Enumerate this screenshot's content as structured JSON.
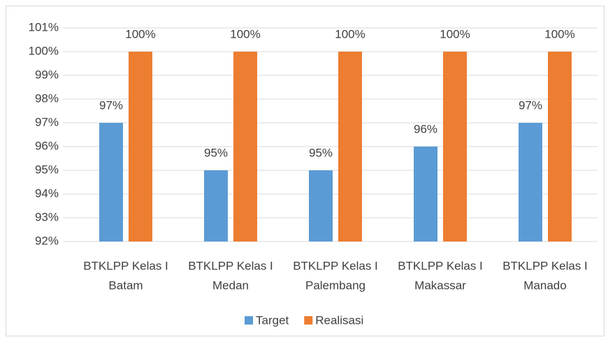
{
  "chart_data": {
    "type": "bar",
    "categories": [
      [
        "BTKLPP Kelas I",
        "Batam"
      ],
      [
        "BTKLPP Kelas I",
        "Medan"
      ],
      [
        "BTKLPP Kelas I",
        "Palembang"
      ],
      [
        "BTKLPP Kelas I",
        "Makassar"
      ],
      [
        "BTKLPP Kelas I",
        "Manado"
      ]
    ],
    "series": [
      {
        "name": "Target",
        "color": "#5b9bd5",
        "values": [
          97,
          95,
          95,
          96,
          97
        ],
        "value_labels": [
          "97%",
          "95%",
          "95%",
          "96%",
          "97%"
        ]
      },
      {
        "name": "Realisasi",
        "color": "#ed7d31",
        "values": [
          100,
          100,
          100,
          100,
          100
        ],
        "value_labels": [
          "100%",
          "100%",
          "100%",
          "100%",
          "100%"
        ]
      }
    ],
    "ylim": [
      92,
      101
    ],
    "yticks": [
      {
        "value": 92,
        "label": "92%"
      },
      {
        "value": 93,
        "label": "93%"
      },
      {
        "value": 94,
        "label": "94%"
      },
      {
        "value": 95,
        "label": "95%"
      },
      {
        "value": 96,
        "label": "96%"
      },
      {
        "value": 97,
        "label": "97%"
      },
      {
        "value": 98,
        "label": "98%"
      },
      {
        "value": 99,
        "label": "99%"
      },
      {
        "value": 100,
        "label": "100%"
      },
      {
        "value": 101,
        "label": "101%"
      }
    ],
    "grid": true,
    "legend": "bottom"
  }
}
